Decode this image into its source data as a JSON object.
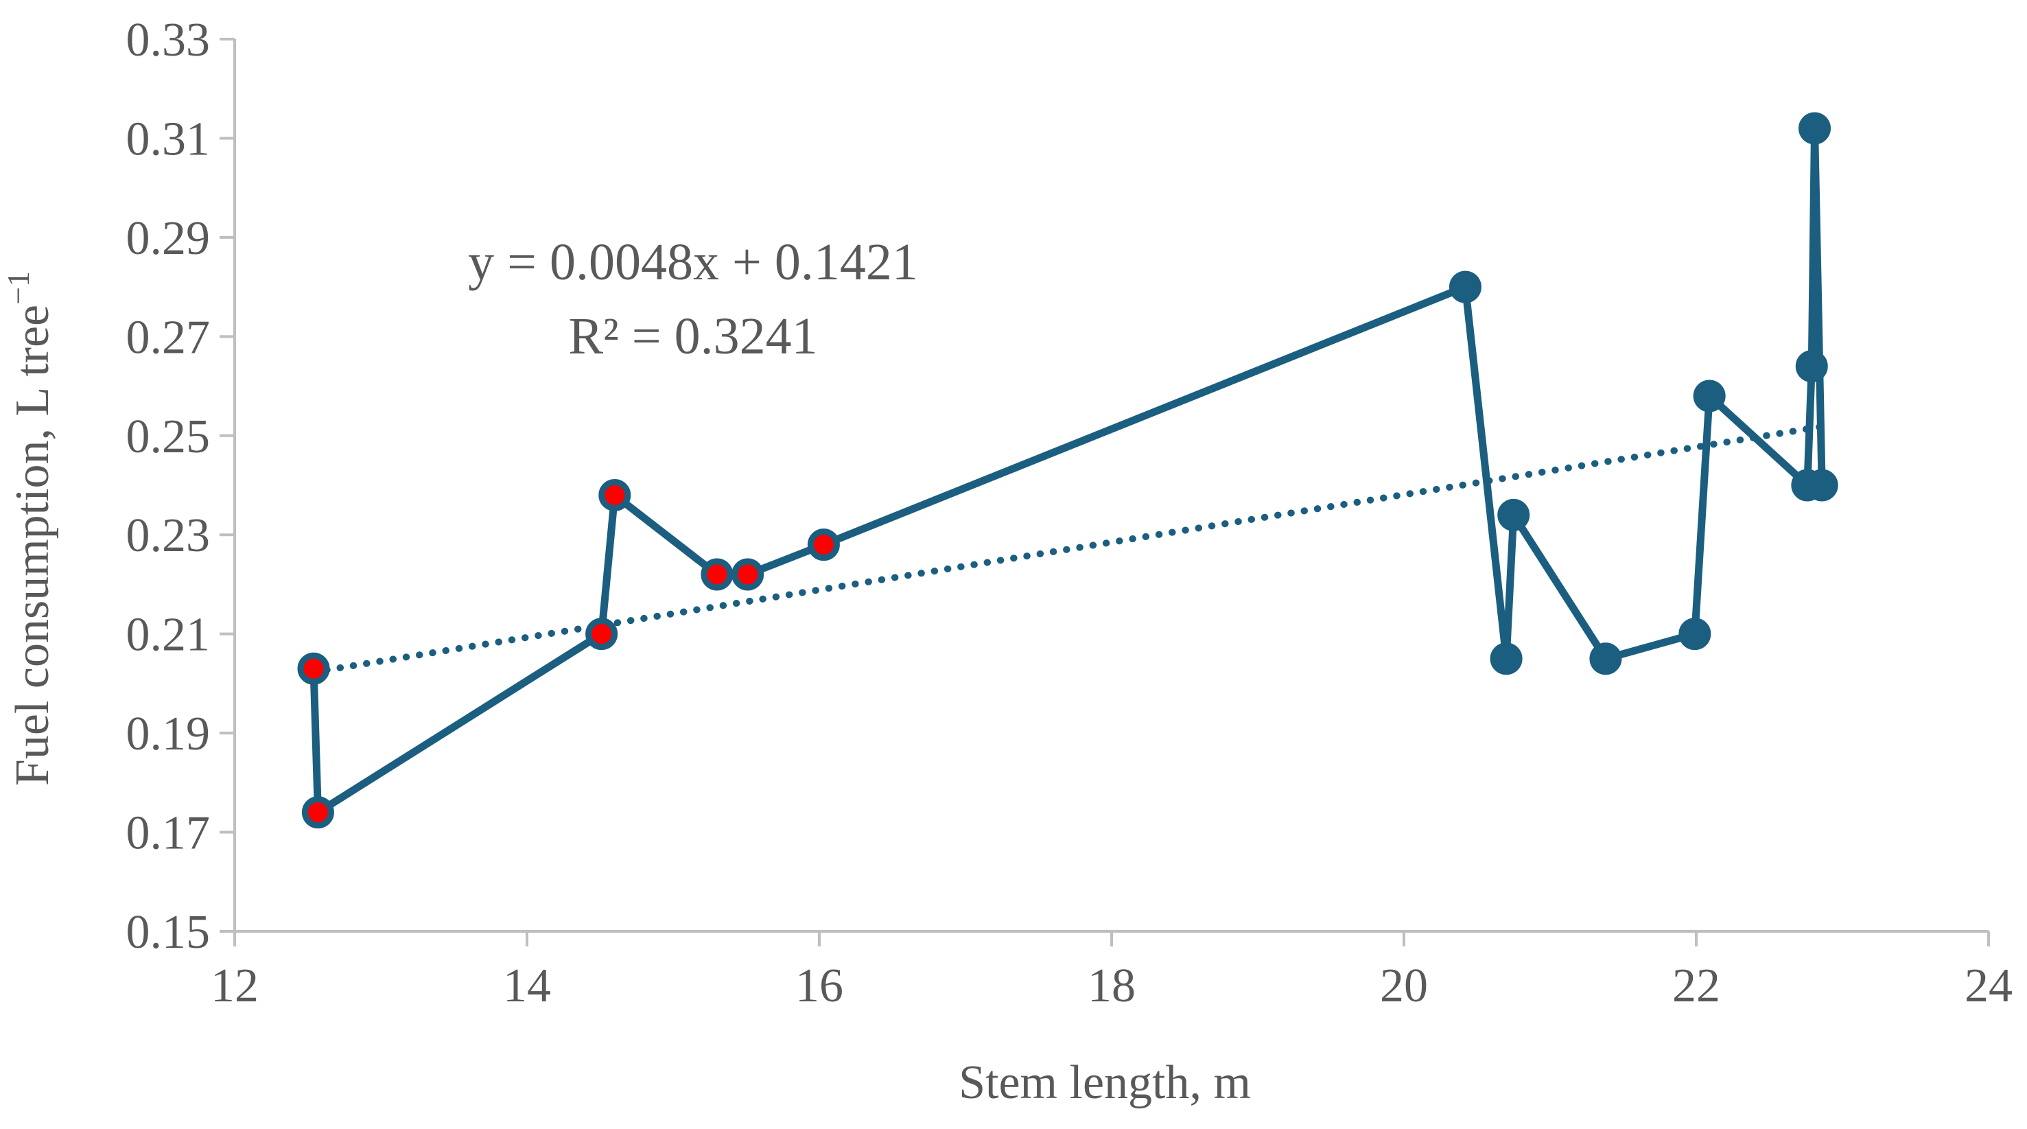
{
  "chart_data": {
    "type": "scatter",
    "title": "",
    "xlabel": "Stem length, m",
    "ylabel": "Fuel consumption, L tree",
    "ylabel_superscript": "−1",
    "xlim": [
      12,
      24
    ],
    "ylim": [
      0.15,
      0.33
    ],
    "x_ticks": [
      "12",
      "14",
      "16",
      "18",
      "20",
      "22",
      "24"
    ],
    "y_ticks": [
      "0.15",
      "0.17",
      "0.19",
      "0.21",
      "0.23",
      "0.25",
      "0.27",
      "0.29",
      "0.31",
      "0.33"
    ],
    "series": [
      {
        "name": "Fuel consumption",
        "color": "#1b5e80",
        "connected": true,
        "points": [
          {
            "x": 12.54,
            "y": 0.203,
            "highlight": true
          },
          {
            "x": 12.57,
            "y": 0.174,
            "highlight": true
          },
          {
            "x": 14.51,
            "y": 0.21,
            "highlight": true
          },
          {
            "x": 14.6,
            "y": 0.238,
            "highlight": true
          },
          {
            "x": 15.3,
            "y": 0.222,
            "highlight": true
          },
          {
            "x": 15.51,
            "y": 0.222,
            "highlight": true
          },
          {
            "x": 16.03,
            "y": 0.228,
            "highlight": true
          },
          {
            "x": 20.42,
            "y": 0.28,
            "highlight": false
          },
          {
            "x": 20.7,
            "y": 0.205,
            "highlight": false
          },
          {
            "x": 20.75,
            "y": 0.234,
            "highlight": false
          },
          {
            "x": 21.38,
            "y": 0.205,
            "highlight": false
          },
          {
            "x": 21.99,
            "y": 0.21,
            "highlight": false
          },
          {
            "x": 22.09,
            "y": 0.258,
            "highlight": false
          },
          {
            "x": 22.76,
            "y": 0.24,
            "highlight": false
          },
          {
            "x": 22.79,
            "y": 0.264,
            "highlight": false
          },
          {
            "x": 22.81,
            "y": 0.312,
            "highlight": false
          },
          {
            "x": 22.86,
            "y": 0.24,
            "highlight": false
          }
        ]
      }
    ],
    "highlight_color": "#ff0000",
    "trendline": {
      "type": "linear",
      "slope": 0.0048,
      "intercept": 0.1421,
      "x_range": [
        12.54,
        22.86
      ],
      "style": "dotted",
      "color": "#1b5e80",
      "equation": "y = 0.0048x + 0.1421",
      "r_squared": "R² = 0.3241"
    },
    "grid": false,
    "legend": "none"
  }
}
